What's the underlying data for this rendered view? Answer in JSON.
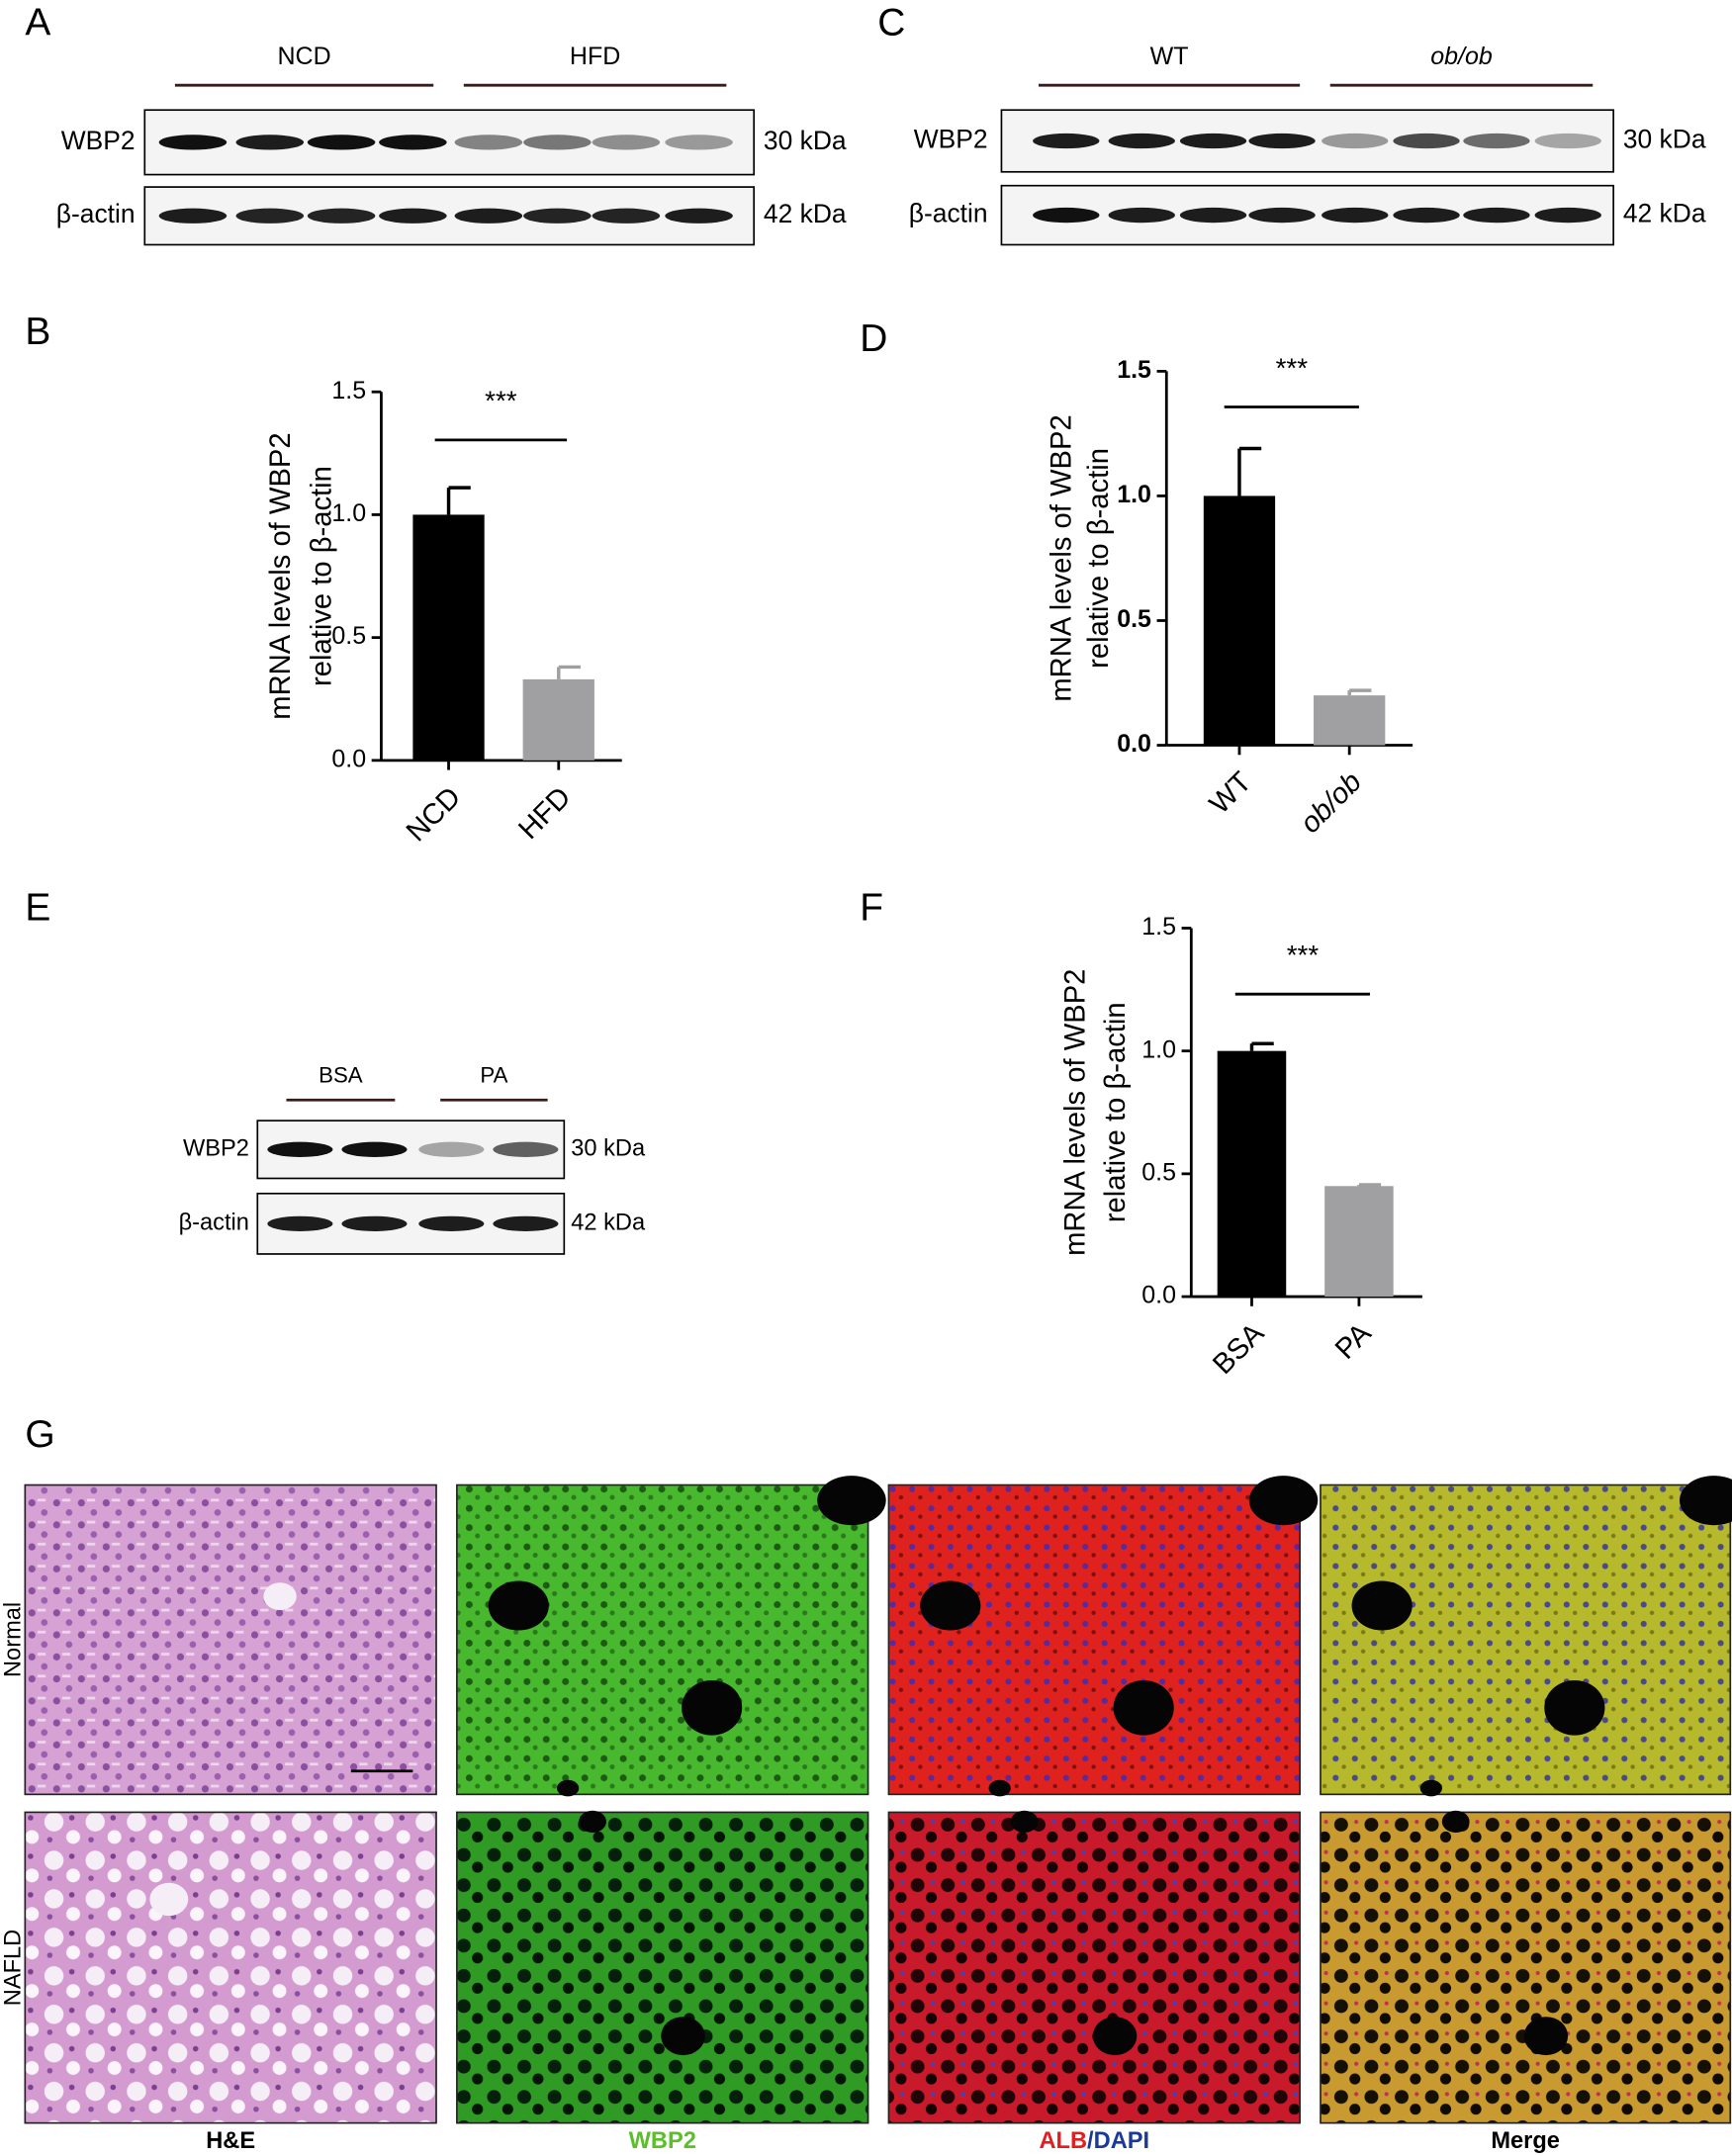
{
  "panel_labels": [
    "A",
    "B",
    "C",
    "D",
    "E",
    "F",
    "G"
  ],
  "blots": [
    {
      "groups": [
        {
          "label": "NCD"
        },
        {
          "label": "HFD"
        }
      ],
      "rows": [
        {
          "protein": "WBP2",
          "size": "30 kDa"
        },
        {
          "protein": "β-actin",
          "size": "42 kDa"
        }
      ]
    },
    {
      "groups": [
        {
          "label": "WT"
        },
        {
          "label": "ob/ob",
          "italic": true
        }
      ],
      "rows": [
        {
          "protein": "WBP2",
          "size": "30 kDa"
        },
        {
          "protein": "β-actin",
          "size": "42 kDa"
        }
      ]
    },
    {
      "groups": [
        {
          "label": "BSA"
        },
        {
          "label": "PA"
        }
      ],
      "rows": [
        {
          "protein": "WBP2",
          "size": "30 kDa"
        },
        {
          "protein": "β-actin",
          "size": "42 kDa"
        }
      ]
    }
  ],
  "chart_data": [
    {
      "type": "bar",
      "ylabel": [
        "mRNA levels of WBP2",
        "relative to β-actin"
      ],
      "categories": [
        "NCD",
        "HFD"
      ],
      "values": [
        1.0,
        0.33
      ],
      "errors": [
        0.11,
        0.05
      ],
      "colors": [
        "#000000",
        "#a0a0a3"
      ],
      "significance": "***",
      "ylim": [
        0,
        1.5
      ],
      "yticks": [
        {
          "value": 0,
          "label": "0.0"
        },
        0.5,
        {
          "value": 1,
          "label": "1.0"
        },
        1.5
      ]
    },
    {
      "type": "bar",
      "ylabel": [
        "mRNA levels of WBP2",
        "relative to β-actin"
      ],
      "categories": [
        "WT",
        "ob/ob"
      ],
      "category_styles": [
        "normal",
        "italic"
      ],
      "values": [
        1.0,
        0.2
      ],
      "errors": [
        0.19,
        0.02
      ],
      "colors": [
        "#000000",
        "#a0a0a3"
      ],
      "significance": "***",
      "bold_ticks": true,
      "ylim": [
        0,
        1.5
      ],
      "yticks": [
        {
          "value": 0,
          "label": "0.0"
        },
        0.5,
        {
          "value": 1,
          "label": "1.0"
        },
        1.5
      ]
    },
    {
      "type": "bar",
      "ylabel": [
        "mRNA levels of WBP2",
        "relative to β-actin"
      ],
      "categories": [
        "BSA",
        "PA"
      ],
      "values": [
        1.0,
        0.45
      ],
      "errors": [
        0.03,
        0.005
      ],
      "colors": [
        "#000000",
        "#a0a0a3"
      ],
      "significance": "***",
      "ylim": [
        0,
        1.5
      ],
      "yticks": [
        {
          "value": 0,
          "label": "0.0"
        },
        0.5,
        {
          "value": 1,
          "label": "1.0"
        },
        1.5
      ]
    }
  ],
  "histology": {
    "rows": [
      "Normal",
      "NAFLD"
    ],
    "columns": [
      [
        {
          "text": "H&E",
          "color": "#000000"
        }
      ],
      [
        {
          "text": "WBP2",
          "color": "#5bbf2a"
        }
      ],
      [
        {
          "text": "ALB",
          "color": "#e02020"
        },
        {
          "text": "/",
          "color": "#1a3a9a"
        },
        {
          "text": "DAPI",
          "color": "#1a3a9a"
        }
      ],
      [
        {
          "text": "Merge",
          "color": "#000000"
        }
      ]
    ]
  }
}
